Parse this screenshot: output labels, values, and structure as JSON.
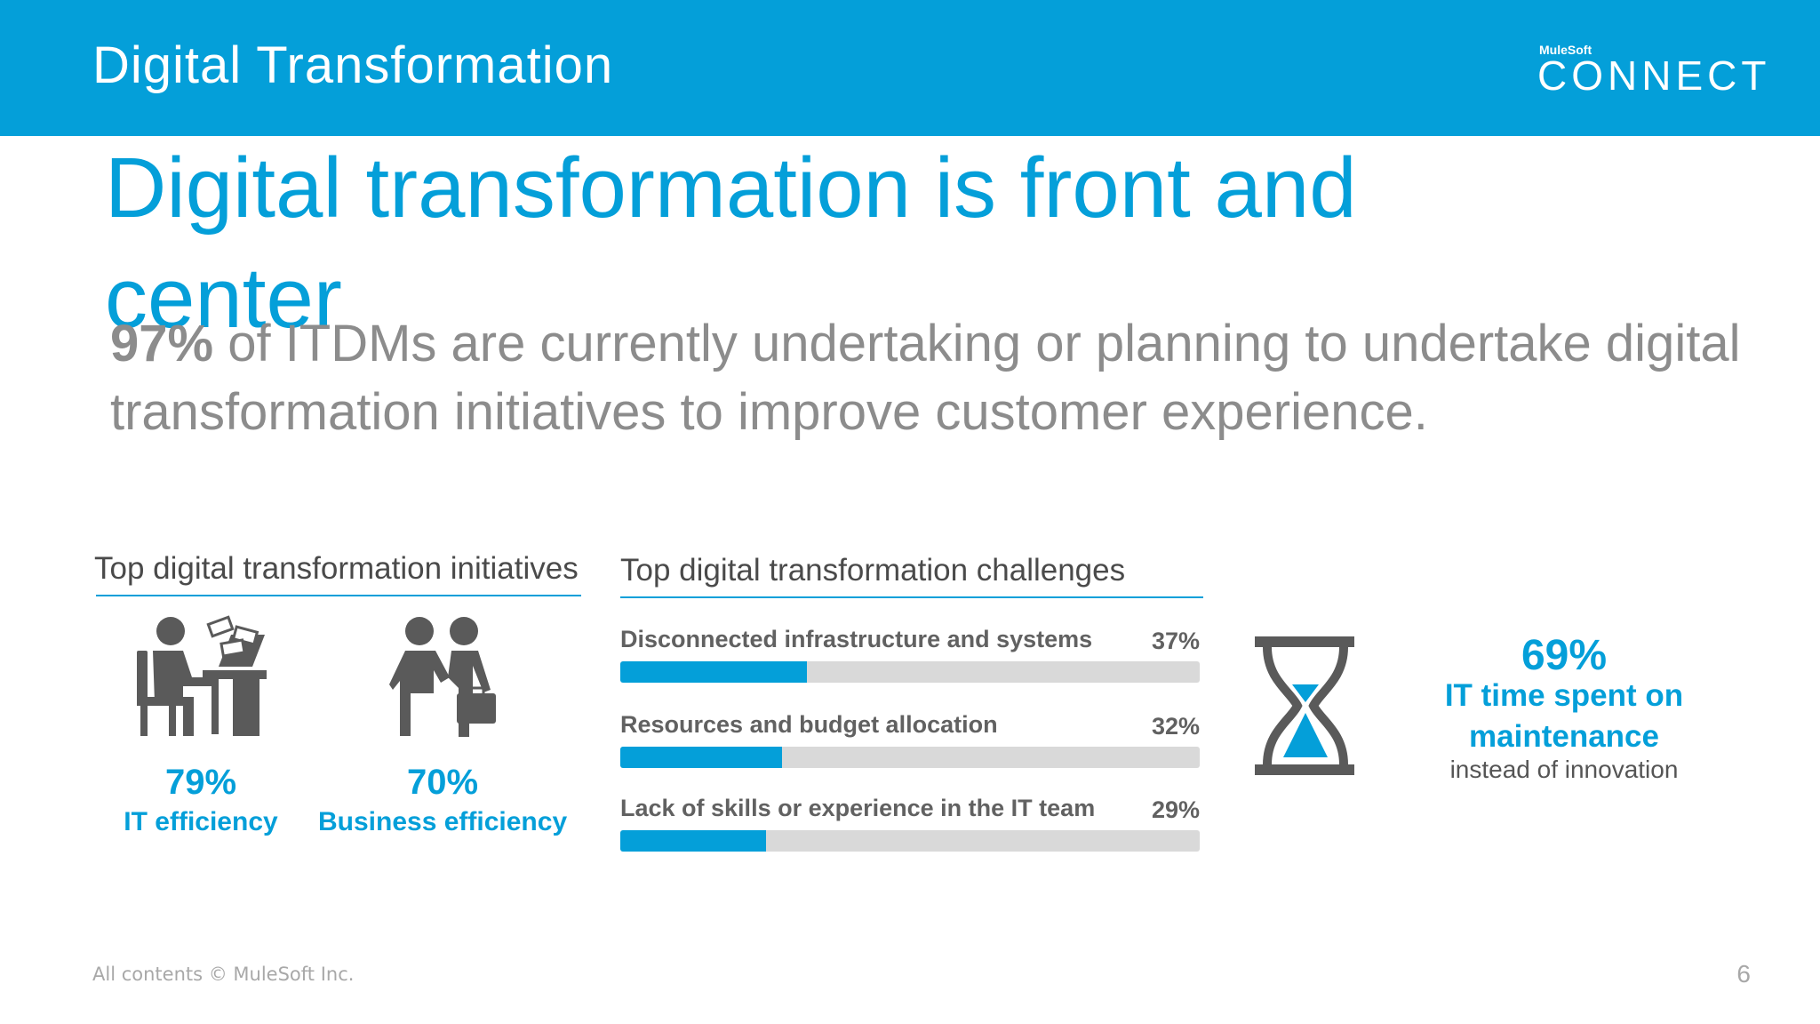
{
  "header": {
    "title": "Digital Transformation",
    "brand_small": "MuleSoft",
    "brand_big": "CONNECT",
    "color": "#049FD9"
  },
  "headline": "Digital transformation is front and center",
  "subtext": {
    "bold": "97%",
    "rest": " of ITDMs are currently undertaking or planning to undertake digital transformation initiatives to improve customer experience."
  },
  "initiatives": {
    "title": "Top digital transformation initiatives",
    "items": [
      {
        "icon": "person-at-desk-with-money-icon",
        "pct": "79%",
        "label": "IT efficiency"
      },
      {
        "icon": "handshake-icon",
        "pct": "70%",
        "label": "Business efficiency"
      }
    ]
  },
  "challenges": {
    "title": "Top digital transformation challenges",
    "items": [
      {
        "label": "Disconnected infrastructure and systems",
        "pct_text": "37%",
        "value": 37
      },
      {
        "label": "Resources and budget allocation",
        "pct_text": "32%",
        "value": 32
      },
      {
        "label": "Lack of skills or experience in the IT team",
        "pct_text": "29%",
        "value": 29
      }
    ]
  },
  "maintenance": {
    "icon": "hourglass-icon",
    "pct": "69%",
    "label": "IT time spent on maintenance",
    "sub": "instead of innovation"
  },
  "footer": {
    "copyright": "All contents © MuleSoft Inc.",
    "page": "6"
  }
}
